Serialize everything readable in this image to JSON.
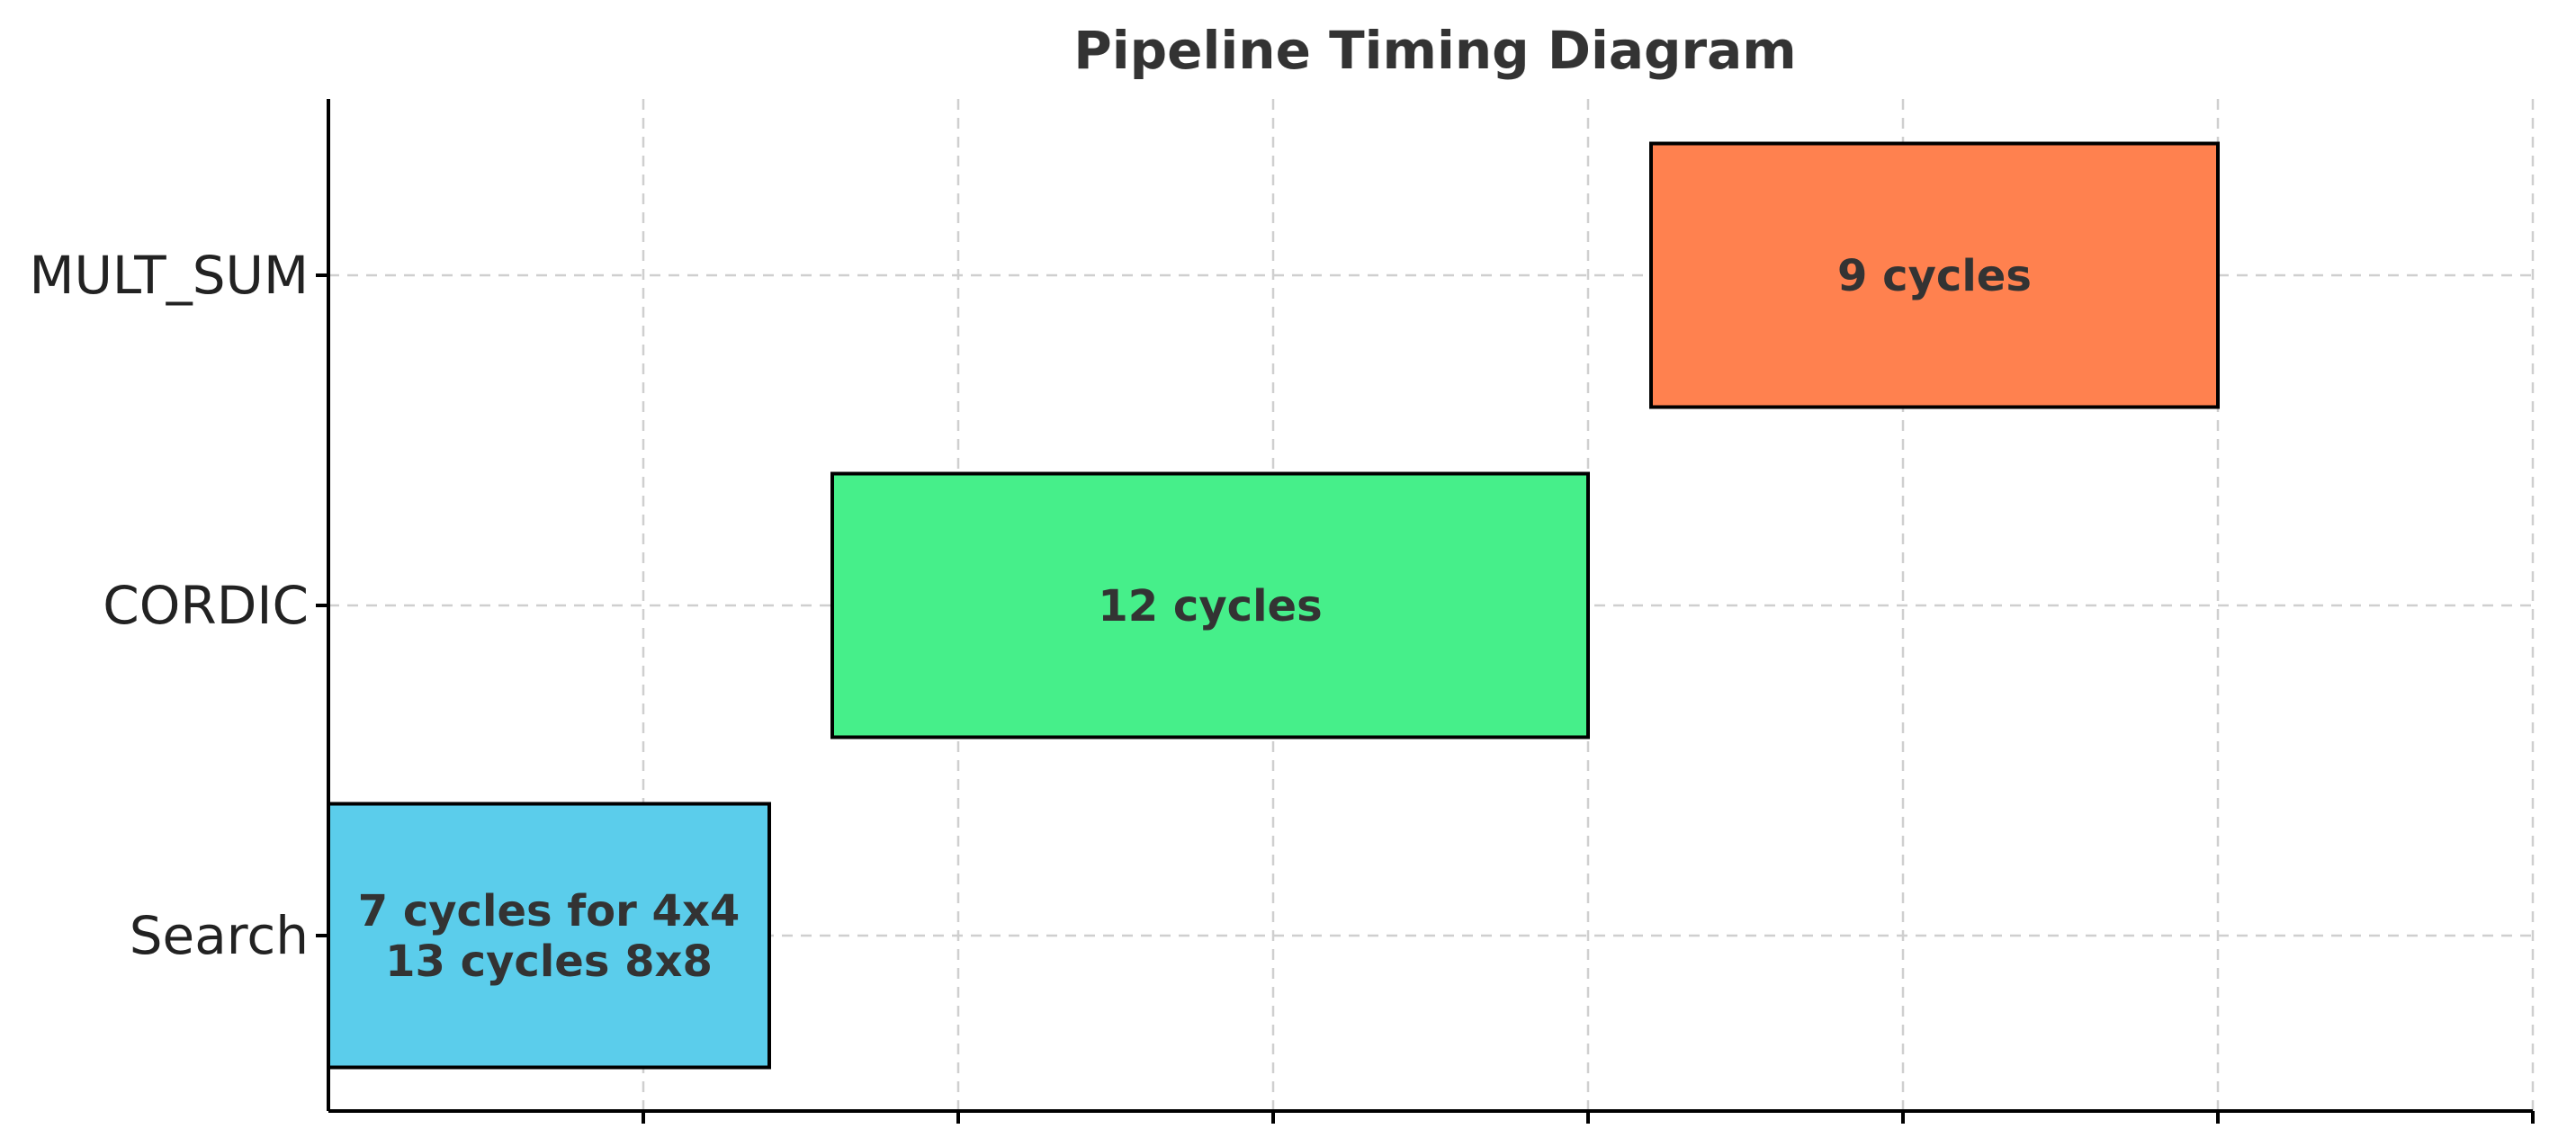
{
  "chart_data": {
    "type": "bar",
    "orientation": "horizontal",
    "title": "Pipeline Timing Diagram",
    "xlabel": "",
    "ylabel": "",
    "xlim": [
      0,
      35
    ],
    "x_ticks": [
      5,
      10,
      15,
      20,
      25,
      30,
      35
    ],
    "x_tick_labels_shown": false,
    "grid": true,
    "categories": [
      "Search",
      "CORDIC",
      "MULT_SUM"
    ],
    "bars": [
      {
        "category": "Search",
        "start": 0,
        "duration": 7,
        "color": "#5BCDEB",
        "label": [
          "7 cycles for 4x4",
          "13 cycles 8x8"
        ]
      },
      {
        "category": "CORDIC",
        "start": 8,
        "duration": 12,
        "color": "#46EF8A",
        "label": [
          "12 cycles"
        ]
      },
      {
        "category": "MULT_SUM",
        "start": 21,
        "duration": 9,
        "color": "#FF814F",
        "label": [
          "9 cycles"
        ]
      }
    ]
  }
}
